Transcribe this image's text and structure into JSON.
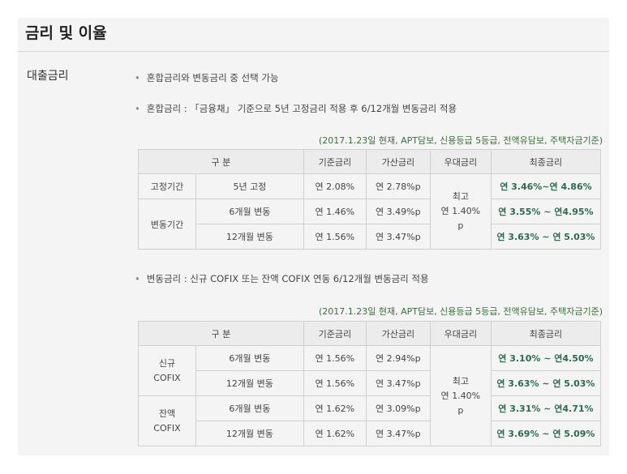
{
  "header": {
    "title": "금리 및 이율"
  },
  "section": {
    "label": "대출금리"
  },
  "bullets": [
    "혼합금리와 변동금리 중 선택 가능",
    "혼합금리 : 「금융채」 기준으로 5년 고정금리 적용 후 6/12개월 변동금리 적용",
    "변동금리 : 신규 COFIX 또는 잔액 COFIX 연동 6/12개월 변동금리 적용"
  ],
  "table1": {
    "note": "(2017.1.23일 현재, APT담보, 신용등급 5등급, 전액유담보, 주택자금기준)",
    "headers": [
      "구   분",
      "기준금리",
      "가산금리",
      "우대금리",
      "최종금리"
    ],
    "group_fixed": "고정기간",
    "group_variable": "변동기간",
    "discount": "최고\n연 1.40%\np",
    "rows": [
      {
        "term": "5년 고정",
        "base": "연 2.08%",
        "spread": "연 2.78%p",
        "final": "연 3.46%~연 4.86%"
      },
      {
        "term": "6개월 변동",
        "base": "연 1.46%",
        "spread": "연 3.49%p",
        "final": "연 3.55% ~ 연4.95%"
      },
      {
        "term": "12개월 변동",
        "base": "연 1.56%",
        "spread": "연 3.47%p",
        "final": "연 3.63% ~ 연 5.03%"
      }
    ]
  },
  "table2": {
    "note": "(2017.1.23일 현재, APT담보, 신용등급 5등급, 전액유담보, 주택자금기준)",
    "headers": [
      "구   분",
      "기준금리",
      "가산금리",
      "우대금리",
      "최종금리"
    ],
    "group_new": "신규\nCOFIX",
    "group_balance": "잔액\nCOFIX",
    "discount": "최고\n연 1.40%\np",
    "rows": [
      {
        "term": "6개월 변동",
        "base": "연 1.56%",
        "spread": "연 2.94%p",
        "final": "연 3.10% ~ 연4.50%"
      },
      {
        "term": "12개월 변동",
        "base": "연 1.56%",
        "spread": "연 3.47%p",
        "final": "연 3.63% ~ 연 5.03%"
      },
      {
        "term": "6개월 변동",
        "base": "연 1.62%",
        "spread": "연 3.09%p",
        "final": "연 3.31% ~ 연4.71%"
      },
      {
        "term": "12개월 변동",
        "base": "연 1.62%",
        "spread": "연 3.47%p",
        "final": "연 3.69% ~ 연 5.09%"
      }
    ]
  }
}
